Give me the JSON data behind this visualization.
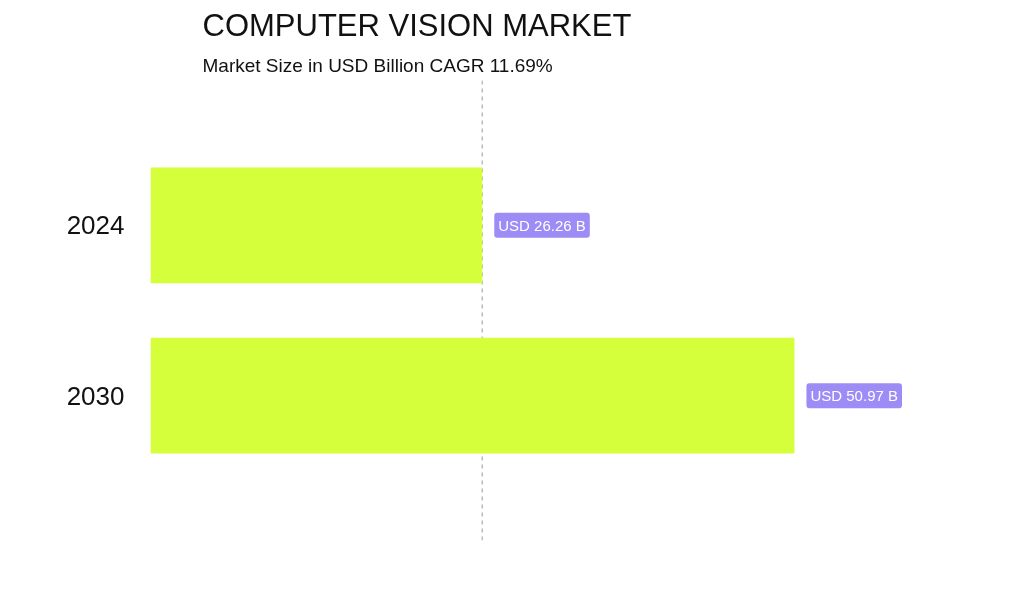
{
  "chart_data": {
    "type": "bar",
    "orientation": "horizontal",
    "title": "COMPUTER VISION MARKET",
    "subtitle": "Market Size in USD Billion CAGR 11.69%",
    "categories": [
      "2024",
      "2030"
    ],
    "values": [
      26.26,
      50.97
    ],
    "color": "#d4ff3a",
    "value_labels": [
      "USD 26.26 B",
      "USD 50.97 B"
    ],
    "ref_lines": [
      {
        "axis": "x",
        "value": 26.26,
        "label": null,
        "color": "#bbbbbb",
        "line_style": "dashed"
      }
    ],
    "grid": false
  }
}
